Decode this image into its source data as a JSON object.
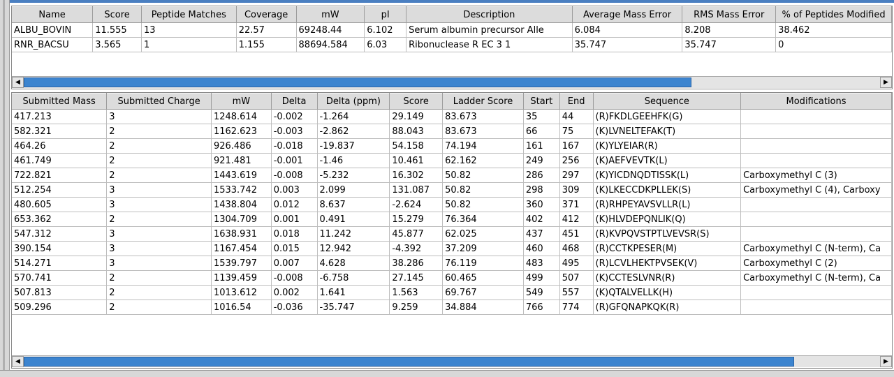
{
  "proteins": {
    "columns": [
      "Name",
      "Score",
      "Peptide Matches",
      "Coverage",
      "mW",
      "pI",
      "Description",
      "Average Mass Error",
      "RMS Mass Error",
      "% of Peptides Modified"
    ],
    "rows": [
      [
        "ALBU_BOVIN",
        "11.555",
        "13",
        "22.57",
        "69248.44",
        "6.102",
        "Serum albumin precursor  Alle",
        "6.084",
        "8.208",
        "38.462"
      ],
      [
        "RNR_BACSU",
        "3.565",
        "1",
        "1.155",
        "88694.584",
        "6.03",
        "Ribonuclease R  EC 3 1",
        "35.747",
        "35.747",
        "0"
      ]
    ],
    "scroll_position": 0
  },
  "peptides": {
    "columns": [
      "Submitted Mass",
      "Submitted Charge",
      "mW",
      "Delta",
      "Delta (ppm)",
      "Score",
      "Ladder Score",
      "Start",
      "End",
      "Sequence",
      "Modifications"
    ],
    "rows": [
      [
        "417.213",
        "3",
        "1248.614",
        "-0.002",
        "-1.264",
        "29.149",
        "83.673",
        "35",
        "44",
        "(R)FKDLGEEHFK(G)",
        ""
      ],
      [
        "582.321",
        "2",
        "1162.623",
        "-0.003",
        "-2.862",
        "88.043",
        "83.673",
        "66",
        "75",
        "(K)LVNELTEFAK(T)",
        ""
      ],
      [
        "464.26",
        "2",
        "926.486",
        "-0.018",
        "-19.837",
        "54.158",
        "74.194",
        "161",
        "167",
        "(K)YLYEIAR(R)",
        ""
      ],
      [
        "461.749",
        "2",
        "921.481",
        "-0.001",
        "-1.46",
        "10.461",
        "62.162",
        "249",
        "256",
        "(K)AEFVEVTK(L)",
        ""
      ],
      [
        "722.821",
        "2",
        "1443.619",
        "-0.008",
        "-5.232",
        "16.302",
        "50.82",
        "286",
        "297",
        "(K)YICDNQDTISSK(L)",
        "Carboxymethyl C (3)"
      ],
      [
        "512.254",
        "3",
        "1533.742",
        "0.003",
        "2.099",
        "131.087",
        "50.82",
        "298",
        "309",
        "(K)LKECCDKPLLEK(S)",
        "Carboxymethyl C (4), Carboxy"
      ],
      [
        "480.605",
        "3",
        "1438.804",
        "0.012",
        "8.637",
        "-2.624",
        "50.82",
        "360",
        "371",
        "(R)RHPEYAVSVLLR(L)",
        ""
      ],
      [
        "653.362",
        "2",
        "1304.709",
        "0.001",
        "0.491",
        "15.279",
        "76.364",
        "402",
        "412",
        "(K)HLVDEPQNLIK(Q)",
        ""
      ],
      [
        "547.312",
        "3",
        "1638.931",
        "0.018",
        "11.242",
        "45.877",
        "62.025",
        "437",
        "451",
        "(R)KVPQVSTPTLVEVSR(S)",
        ""
      ],
      [
        "390.154",
        "3",
        "1167.454",
        "0.015",
        "12.942",
        "-4.392",
        "37.209",
        "460",
        "468",
        "(R)CCTKPESER(M)",
        "Carboxymethyl C (N-term), Ca"
      ],
      [
        "514.271",
        "3",
        "1539.797",
        "0.007",
        "4.628",
        "38.286",
        "76.119",
        "483",
        "495",
        "(R)LCVLHEKTPVSEK(V)",
        "Carboxymethyl C (2)"
      ],
      [
        "570.741",
        "2",
        "1139.459",
        "-0.008",
        "-6.758",
        "27.145",
        "60.465",
        "499",
        "507",
        "(K)CCTESLVNR(R)",
        "Carboxymethyl C (N-term), Ca"
      ],
      [
        "507.813",
        "2",
        "1013.612",
        "0.002",
        "1.641",
        "1.563",
        "69.767",
        "549",
        "557",
        "(K)QTALVELLK(H)",
        ""
      ],
      [
        "509.296",
        "2",
        "1016.54",
        "-0.036",
        "-35.747",
        "9.259",
        "34.884",
        "766",
        "774",
        "(R)GFQNAPKQK(R)",
        ""
      ]
    ],
    "scroll_position": 0
  },
  "scrollbar": {
    "left_arrow": "◀",
    "right_arrow": "▶",
    "top_visible_fraction": 0.78,
    "bottom_visible_fraction": 0.9
  },
  "colors": {
    "scroll_thumb": "#3c84cf",
    "header_bg": "#dcdcdc",
    "accent": "#4a7fc1"
  }
}
